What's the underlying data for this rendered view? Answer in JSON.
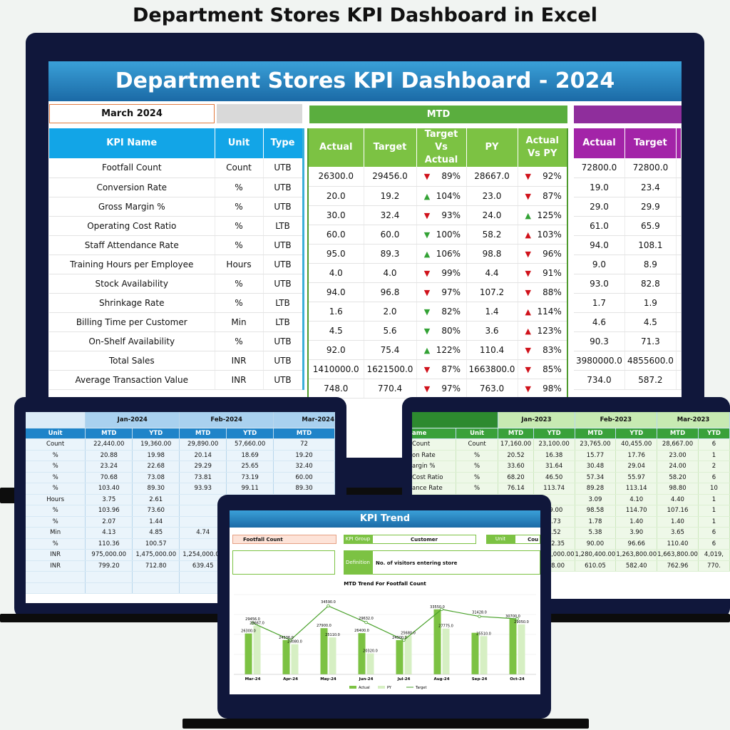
{
  "page_title": "Department Stores KPI Dashboard in Excel",
  "main": {
    "title": "Department Stores KPI Dashboard - 2024",
    "month": "March 2024",
    "mtd_label": "MTD",
    "kpi_headers": [
      "KPI Name",
      "Unit",
      "Type"
    ],
    "mtd_headers": [
      "Actual",
      "Target",
      "Target Vs Actual",
      "PY",
      "Actual Vs PY"
    ],
    "ytd_headers": [
      "Actual",
      "Target"
    ],
    "rows": [
      {
        "name": "Footfall Count",
        "unit": "Count",
        "type": "UTB",
        "actual": "26300.0",
        "target": "29456.0",
        "tva_dir": "down",
        "tva": "89%",
        "py": "28667.0",
        "avp_dir": "down",
        "avp": "92%",
        "ytd_actual": "72800.0",
        "ytd_target": "72800.0"
      },
      {
        "name": "Conversion Rate",
        "unit": "%",
        "type": "UTB",
        "actual": "20.0",
        "target": "19.2",
        "tva_dir": "up",
        "tva": "104%",
        "py": "23.0",
        "avp_dir": "down",
        "avp": "87%",
        "ytd_actual": "19.0",
        "ytd_target": "23.4"
      },
      {
        "name": "Gross Margin %",
        "unit": "%",
        "type": "UTB",
        "actual": "30.0",
        "target": "32.4",
        "tva_dir": "down",
        "tva": "93%",
        "py": "24.0",
        "avp_dir": "up",
        "avp": "125%",
        "ytd_actual": "29.0",
        "ytd_target": "29.9"
      },
      {
        "name": "Operating Cost Ratio",
        "unit": "%",
        "type": "LTB",
        "actual": "60.0",
        "target": "60.0",
        "tva_dir": "down-green",
        "tva": "100%",
        "py": "58.2",
        "avp_dir": "up-red",
        "avp": "103%",
        "ytd_actual": "61.0",
        "ytd_target": "65.9"
      },
      {
        "name": "Staff Attendance Rate",
        "unit": "%",
        "type": "UTB",
        "actual": "95.0",
        "target": "89.3",
        "tva_dir": "up",
        "tva": "106%",
        "py": "98.8",
        "avp_dir": "down",
        "avp": "96%",
        "ytd_actual": "94.0",
        "ytd_target": "108.1"
      },
      {
        "name": "Training Hours per Employee",
        "unit": "Hours",
        "type": "UTB",
        "actual": "4.0",
        "target": "4.0",
        "tva_dir": "down",
        "tva": "99%",
        "py": "4.4",
        "avp_dir": "down",
        "avp": "91%",
        "ytd_actual": "9.0",
        "ytd_target": "8.9"
      },
      {
        "name": "Stock Availability",
        "unit": "%",
        "type": "UTB",
        "actual": "94.0",
        "target": "96.8",
        "tva_dir": "down",
        "tva": "97%",
        "py": "107.2",
        "avp_dir": "down",
        "avp": "88%",
        "ytd_actual": "93.0",
        "ytd_target": "82.8"
      },
      {
        "name": "Shrinkage Rate",
        "unit": "%",
        "type": "LTB",
        "actual": "1.6",
        "target": "2.0",
        "tva_dir": "down-green",
        "tva": "82%",
        "py": "1.4",
        "avp_dir": "up-red",
        "avp": "114%",
        "ytd_actual": "1.7",
        "ytd_target": "1.9"
      },
      {
        "name": "Billing Time per Customer",
        "unit": "Min",
        "type": "LTB",
        "actual": "4.5",
        "target": "5.6",
        "tva_dir": "down-green",
        "tva": "80%",
        "py": "3.6",
        "avp_dir": "up-red",
        "avp": "123%",
        "ytd_actual": "4.6",
        "ytd_target": "4.5"
      },
      {
        "name": "On-Shelf Availability",
        "unit": "%",
        "type": "UTB",
        "actual": "92.0",
        "target": "75.4",
        "tva_dir": "up",
        "tva": "122%",
        "py": "110.4",
        "avp_dir": "down",
        "avp": "83%",
        "ytd_actual": "90.3",
        "ytd_target": "71.3"
      },
      {
        "name": "Total Sales",
        "unit": "INR",
        "type": "UTB",
        "actual": "1410000.0",
        "target": "1621500.0",
        "tva_dir": "down",
        "tva": "87%",
        "py": "1663800.0",
        "avp_dir": "down",
        "avp": "85%",
        "ytd_actual": "3980000.0",
        "ytd_target": "4855600.0"
      },
      {
        "name": "Average Transaction Value",
        "unit": "INR",
        "type": "UTB",
        "actual": "748.0",
        "target": "770.4",
        "tva_dir": "down",
        "tva": "97%",
        "py": "763.0",
        "avp_dir": "down",
        "avp": "98%",
        "ytd_actual": "734.0",
        "ytd_target": "587.2"
      }
    ]
  },
  "left_sheet": {
    "months": [
      "Jan-2024",
      "Feb-2024",
      "Mar-2024"
    ],
    "unit_header": "Unit",
    "sub_headers": [
      "MTD",
      "YTD",
      "MTD",
      "YTD",
      "MTD"
    ],
    "rows": [
      [
        "Count",
        "22,440.00",
        "19,360.00",
        "29,890.00",
        "57,660.00",
        "72"
      ],
      [
        "%",
        "20.88",
        "19.98",
        "20.14",
        "18.69",
        "19.20"
      ],
      [
        "%",
        "23.24",
        "22.68",
        "29.29",
        "25.65",
        "32.40"
      ],
      [
        "%",
        "70.68",
        "73.08",
        "73.81",
        "73.19",
        "60.00"
      ],
      [
        "%",
        "103.40",
        "89.30",
        "93.93",
        "99.11",
        "89.30"
      ],
      [
        "Hours",
        "3.75",
        "2.61",
        "",
        "",
        ""
      ],
      [
        "%",
        "103.96",
        "73.60",
        "",
        "",
        ""
      ],
      [
        "%",
        "2.07",
        "1.44",
        "",
        "",
        ""
      ],
      [
        "Min",
        "4.13",
        "4.85",
        "4.74",
        "",
        ""
      ],
      [
        "%",
        "110.36",
        "100.57",
        "",
        "",
        ""
      ],
      [
        "INR",
        "975,000.00",
        "1,475,000.00",
        "1,254,000.00",
        "",
        ""
      ],
      [
        "INR",
        "799.20",
        "712.80",
        "639.45",
        "",
        ""
      ],
      [
        "",
        "",
        "",
        "",
        "",
        ""
      ],
      [
        "",
        "",
        "",
        "",
        "",
        ""
      ]
    ]
  },
  "right_sheet": {
    "months": [
      "Jan-2023",
      "Feb-2023",
      "Mar-2023"
    ],
    "name_header": "ame",
    "unit_header": "Unit",
    "sub_headers": [
      "MTD",
      "YTD",
      "MTD",
      "YTD",
      "MTD",
      "YTD"
    ],
    "rows": [
      [
        "Count",
        "Count",
        "17,160.00",
        "23,100.00",
        "23,765.00",
        "40,455.00",
        "28,667.00",
        "6"
      ],
      [
        "on Rate",
        "%",
        "20.52",
        "16.38",
        "15.77",
        "17.76",
        "23.00",
        "1"
      ],
      [
        "argin %",
        "%",
        "33.60",
        "31.64",
        "30.48",
        "29.04",
        "24.00",
        "2"
      ],
      [
        "Cost Ratio",
        "%",
        "68.20",
        "46.50",
        "57.34",
        "55.97",
        "58.20",
        "6"
      ],
      [
        "ance Rate",
        "%",
        "76.14",
        "113.74",
        "89.28",
        "113.14",
        "98.80",
        "10"
      ],
      [
        "",
        "",
        "",
        "",
        "3.09",
        "4.10",
        "4.40",
        "1"
      ],
      [
        "",
        "",
        "",
        "69.00",
        "98.58",
        "114.70",
        "107.16",
        "1"
      ],
      [
        "",
        "",
        "",
        "1.73",
        "1.78",
        "1.40",
        "1.40",
        "1"
      ],
      [
        "",
        "",
        "",
        "5.52",
        "5.38",
        "3.90",
        "3.65",
        "6"
      ],
      [
        "",
        "",
        "",
        "102.35",
        "90.00",
        "96.66",
        "110.40",
        "6"
      ],
      [
        "",
        "",
        "",
        "1,300,000.00",
        "1,280,400.00",
        "1,263,800.00",
        "1,663,800.00",
        "4,019,"
      ],
      [
        "",
        "",
        "",
        "828.00",
        "610.05",
        "582.40",
        "762.96",
        "770."
      ]
    ]
  },
  "trend": {
    "title": "KPI Trend",
    "kpi_select": "Footfall Count",
    "group_label": "KPI Group",
    "group_value": "Customer",
    "unit_label": "Unit",
    "unit_value": "Cou",
    "definition_label": "Definition",
    "definition_value": "No. of visitors entering store",
    "legend": [
      "Actual",
      "PY",
      "Target"
    ]
  },
  "chart_data": {
    "type": "bar",
    "title": "MTD Trend For Footfall Count",
    "categories": [
      "Mar-24",
      "Apr-24",
      "May-24",
      "Jun-24",
      "Jul-24",
      "Aug-24",
      "Sep-24",
      "Oct-24"
    ],
    "series": [
      {
        "name": "Actual",
        "values": [
          26300.0,
          24336.0,
          27900.0,
          26400.0,
          24300.0,
          33550.0,
          26500.0,
          30700.0
        ]
      },
      {
        "name": "PY",
        "values": [
          28667.0,
          23080.0,
          25110.0,
          20320.0,
          25680.0,
          27775.0,
          25510.0,
          29050.0
        ]
      },
      {
        "name": "Target",
        "values": [
          29456.0,
          24336.0,
          34590.0,
          29632.0,
          24300.0,
          33550.0,
          31428.0,
          30700.0
        ]
      }
    ],
    "point_labels": {
      "Actual": [
        "26300.0",
        "24336.0",
        "27900.0",
        "26400.0",
        "24300.0",
        "33550.0",
        "",
        "30700.0"
      ],
      "PY": [
        "28667.0",
        "23080.0",
        "25110.0",
        "20320.0",
        "25680.0",
        "27775.0",
        "25510.0",
        "29050.0"
      ],
      "Target": [
        "29456.0",
        "",
        "34590.0",
        "29632.0",
        "",
        "",
        "31428.0",
        ""
      ]
    },
    "colors": {
      "Actual": "#7cc243",
      "PY": "#d6efc3",
      "Target": "#49a12a"
    }
  }
}
